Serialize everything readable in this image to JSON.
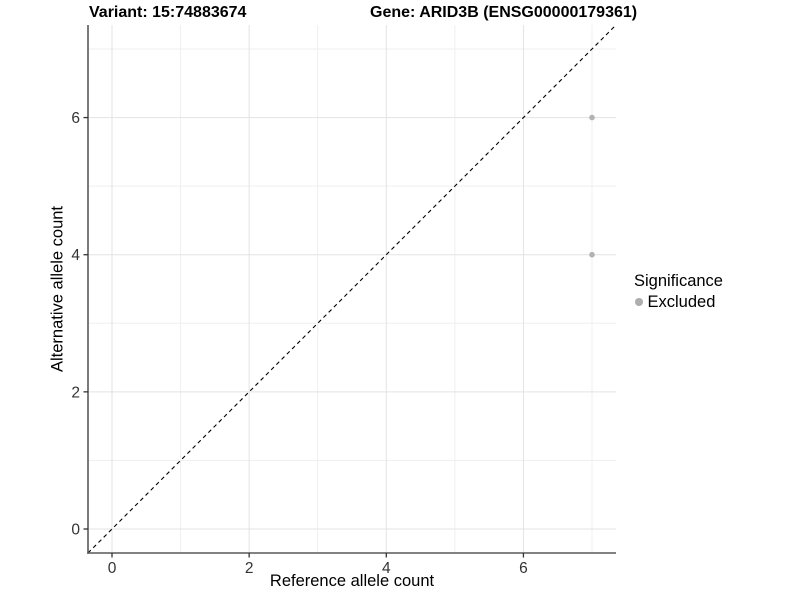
{
  "header": {
    "variant_title": "Variant: 15:74883674",
    "gene_title": "Gene: ARID3B (ENSG00000179361)"
  },
  "chart_data": {
    "type": "scatter",
    "xlabel": "Reference allele count",
    "ylabel": "Alternative allele count",
    "xlim": [
      -0.35,
      7.35
    ],
    "ylim": [
      -0.35,
      7.35
    ],
    "xticks": [
      0,
      2,
      4,
      6
    ],
    "yticks": [
      0,
      2,
      4,
      6
    ],
    "xminor": [
      1,
      3,
      5,
      7
    ],
    "yminor": [
      1,
      3,
      5,
      7
    ],
    "grid": true,
    "points": [
      {
        "x": 7,
        "y": 6,
        "significance": "Excluded"
      },
      {
        "x": 7,
        "y": 4,
        "significance": "Excluded"
      }
    ],
    "identity_line": {
      "slope": 1,
      "intercept": 0,
      "style": "dashed",
      "color": "#000000"
    },
    "point_color": "#b2b2b2",
    "point_radius": 2.8,
    "legend": {
      "position": "right",
      "title": "Significance",
      "items": [
        {
          "label": "Excluded",
          "color": "#aeaeae"
        }
      ]
    },
    "colors": {
      "grid_major": "#e3e3e3",
      "grid_minor": "#efefef",
      "axis_line": "#595959",
      "tick_mark": "#333333",
      "tick_label": "#333333",
      "background": "#ffffff"
    }
  }
}
